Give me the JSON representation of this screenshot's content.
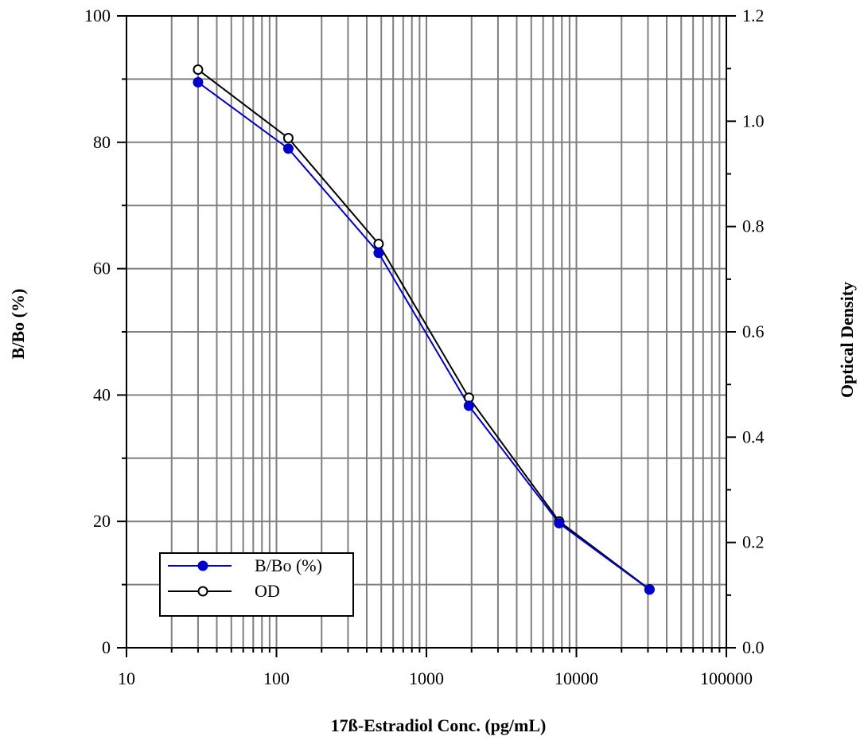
{
  "chart_data": {
    "type": "line",
    "xscale": "log",
    "xlabel": "17ß-Estradiol Conc. (pg/mL)",
    "ylabel_left": "B/Bo (%)",
    "ylabel_right": "Optical Density",
    "xlim": [
      10,
      100000
    ],
    "ylim_left": [
      0,
      100
    ],
    "ylim_right": [
      0,
      1.2
    ],
    "x_tick_labels": [
      "10",
      "100",
      "1000",
      "10000",
      "100000"
    ],
    "y_left_tick_labels": [
      "0",
      "20",
      "40",
      "60",
      "80",
      "100"
    ],
    "y_right_tick_labels": [
      "0.0",
      "0.2",
      "0.4",
      "0.6",
      "0.8",
      "1.0",
      "1.2"
    ],
    "grid": true,
    "legend_position": "bottom-left",
    "series": [
      {
        "name": "B/Bo (%)",
        "axis": "left",
        "color": "#0000cc",
        "marker": "filled-circle",
        "x": [
          30,
          120,
          480,
          1920,
          7680,
          30720
        ],
        "y": [
          89.5,
          79.0,
          62.5,
          38.3,
          19.7,
          9.2
        ]
      },
      {
        "name": "OD",
        "axis": "right",
        "color": "#000000",
        "marker": "open-circle",
        "x": [
          30,
          120,
          480,
          1920,
          7680,
          30720
        ],
        "y": [
          1.098,
          0.968,
          0.767,
          0.475,
          0.24,
          0.111
        ]
      }
    ]
  }
}
